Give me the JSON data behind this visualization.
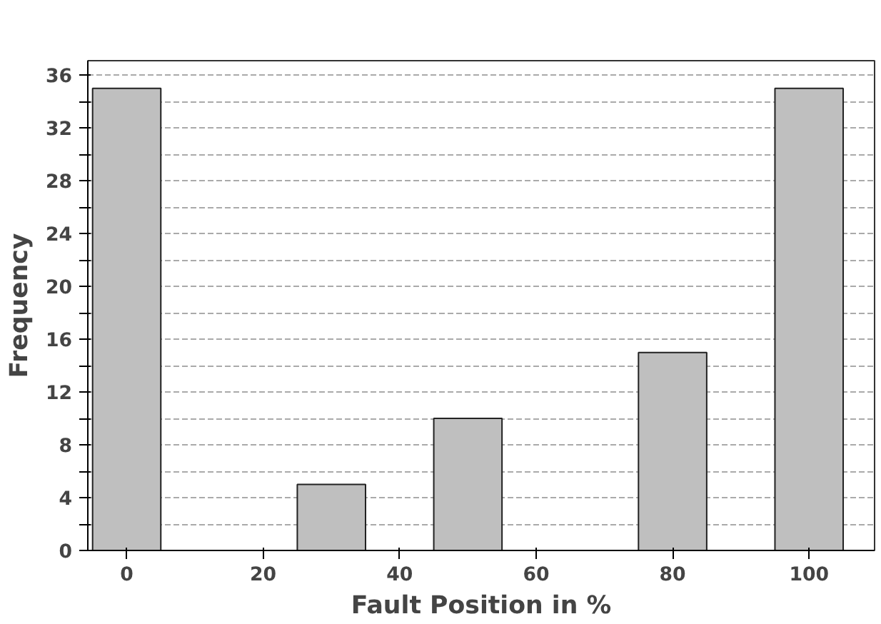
{
  "chart_data": {
    "type": "bar",
    "xlabel": "Fault Position in %",
    "ylabel": "Frequency",
    "x": [
      0,
      30,
      50,
      80,
      100
    ],
    "values": [
      35,
      5,
      10,
      15,
      35
    ],
    "color": "#bfbfbf",
    "xlim": [
      -5.7,
      109.6
    ],
    "xticks": [
      0,
      20,
      40,
      60,
      80,
      100
    ],
    "ylim": [
      0,
      37.1
    ],
    "yticks": [
      0,
      {
        "value": 2,
        "label": null
      },
      4,
      {
        "value": 6,
        "label": null
      },
      8,
      {
        "value": 10,
        "label": null
      },
      12,
      {
        "value": 14,
        "label": null
      },
      16,
      {
        "value": 18,
        "label": null
      },
      20,
      {
        "value": 22,
        "label": null
      },
      24,
      {
        "value": 26,
        "label": null
      },
      28,
      {
        "value": 30,
        "label": null
      },
      32,
      {
        "value": 34,
        "label": null
      },
      36
    ],
    "grid": "y"
  }
}
